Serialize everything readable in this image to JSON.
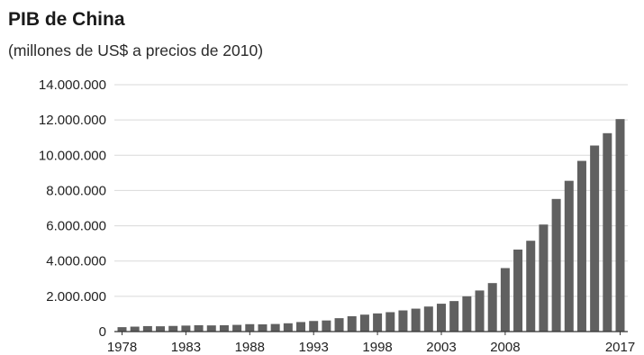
{
  "chart_data": {
    "type": "bar",
    "title": "PIB de China",
    "subtitle": "(millones de US$ a precios de 2010)",
    "xlabel": "",
    "ylabel": "",
    "ylim": [
      0,
      14000000
    ],
    "yticks": [
      {
        "value": 0,
        "label": "0"
      },
      {
        "value": 2000000,
        "label": "2.000.000"
      },
      {
        "value": 4000000,
        "label": "4.000.000"
      },
      {
        "value": 6000000,
        "label": "6.000.000"
      },
      {
        "value": 8000000,
        "label": "8.000.000"
      },
      {
        "value": 10000000,
        "label": "10.000.000"
      },
      {
        "value": 12000000,
        "label": "12.000.000"
      },
      {
        "value": 14000000,
        "label": "14.000.000"
      }
    ],
    "xtick_labels": [
      "1978",
      "1983",
      "1988",
      "1993",
      "1998",
      "2003",
      "2008",
      "2017"
    ],
    "grid": true,
    "bar_color": "#606060",
    "categories": [
      "1978",
      "1979",
      "1980",
      "1981",
      "1982",
      "1983",
      "1984",
      "1985",
      "1986",
      "1987",
      "1988",
      "1989",
      "1990",
      "1991",
      "1992",
      "1993",
      "1994",
      "1995",
      "1996",
      "1997",
      "1998",
      "1999",
      "2000",
      "2001",
      "2002",
      "2003",
      "2004",
      "2005",
      "2006",
      "2007",
      "2008",
      "2009",
      "2010",
      "2011",
      "2012",
      "2013",
      "2014",
      "2015",
      "2016",
      "2017"
    ],
    "values": [
      250000,
      280000,
      310000,
      300000,
      320000,
      340000,
      360000,
      350000,
      360000,
      380000,
      420000,
      410000,
      430000,
      470000,
      540000,
      600000,
      630000,
      760000,
      870000,
      960000,
      1030000,
      1100000,
      1200000,
      1300000,
      1420000,
      1580000,
      1730000,
      2000000,
      2330000,
      2750000,
      3600000,
      4650000,
      5150000,
      6070000,
      7520000,
      8550000,
      9680000,
      10550000,
      11250000,
      12050000
    ]
  }
}
